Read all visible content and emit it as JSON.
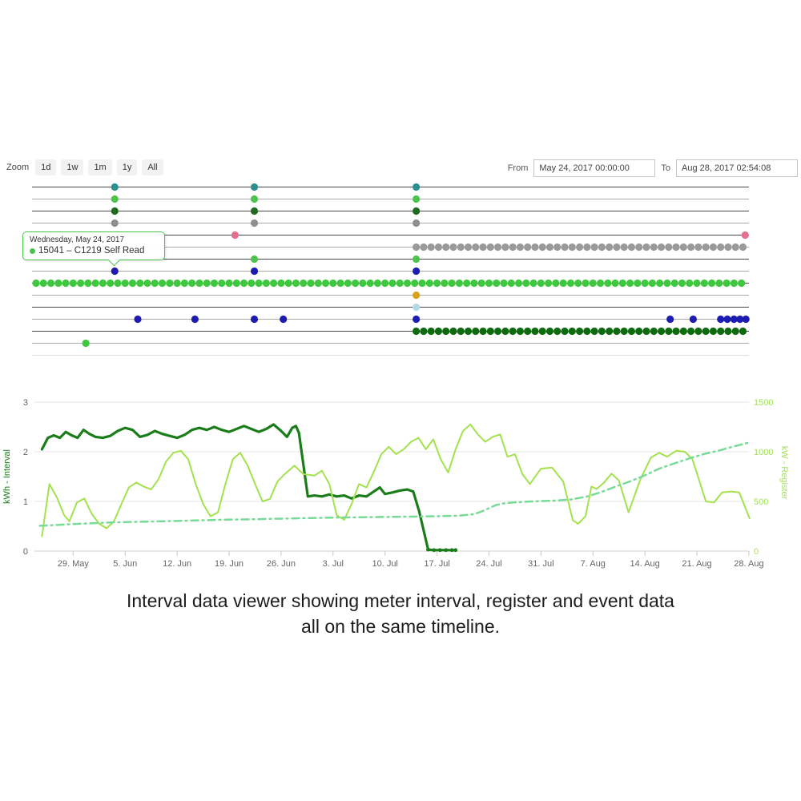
{
  "toolbar": {
    "zoom_label": "Zoom",
    "buttons": [
      "1d",
      "1w",
      "1m",
      "1y",
      "All"
    ],
    "from_label": "From",
    "from_value": "May 24, 2017 00:00:00",
    "to_label": "To",
    "to_value": "Aug 28, 2017 02:54:08"
  },
  "tooltip": {
    "date": "Wednesday, May 24, 2017",
    "text": "15041 – C1219 Self Read",
    "marker_color": "#4cc44c"
  },
  "caption": {
    "line1": "Interval data viewer showing meter interval, register and event data",
    "line2": "all on the same timeline."
  },
  "chart_data": [
    {
      "type": "scatter",
      "title": "meter event timeline",
      "x_axis": {
        "unit": "days since May 24, 2017",
        "range": [
          0,
          96.5
        ],
        "start": "May 24, 2017 00:00:00",
        "end": "Aug 28, 2017 02:54:08"
      },
      "dot_radius": 4.6,
      "tracks": [
        {
          "color": "#2b908f",
          "line": "dark",
          "events": [
            10.6,
            29.4,
            51.2
          ]
        },
        {
          "color": "#4cc44c",
          "line": "light",
          "events": [
            10.6,
            29.4,
            51.2
          ]
        },
        {
          "color": "#1d6b1d",
          "line": "dark",
          "events": [
            10.6,
            29.4,
            51.2
          ]
        },
        {
          "color": "#8f8f8f",
          "line": "light",
          "events": [
            10.6,
            29.4,
            51.2
          ]
        },
        {
          "color": "#e4708e",
          "line": "dark",
          "events": [
            26.8,
            95.5
          ]
        },
        {
          "color": "#9a9a9a",
          "line": "light",
          "events": [
            {
              "from": 51.2,
              "to": 95.5,
              "step": 1
            }
          ]
        },
        {
          "color": "#4cc44c",
          "line": "dark",
          "events": [
            29.4,
            51.2
          ]
        },
        {
          "color": "#1c1cb0",
          "line": "light",
          "events": [
            10.6,
            29.4,
            51.2
          ]
        },
        {
          "color": "#3fc83f",
          "line": "dark",
          "events": [
            {
              "from": 0,
              "to": 95.5,
              "step": 1
            }
          ]
        },
        {
          "color": "#dca318",
          "line": "light",
          "events": [
            51.2
          ]
        },
        {
          "color": "#b5d9e4",
          "line": "dark",
          "events": [
            51.2
          ]
        },
        {
          "color": "#1c1cb0",
          "line": "light",
          "events": [
            13.7,
            21.4,
            29.4,
            33.3,
            51.2,
            85.4,
            88.5,
            92.2,
            93.1,
            94.0,
            94.8,
            95.6
          ]
        },
        {
          "color": "#0e6a0e",
          "line": "dark",
          "events": [
            {
              "from": 51.2,
              "to": 95.5,
              "step": 1
            }
          ]
        },
        {
          "color": "#3fc83f",
          "line": "light",
          "events": [
            6.7
          ]
        },
        {
          "color": "#dddddd",
          "line": "xlight",
          "events": []
        }
      ]
    },
    {
      "type": "line",
      "x_unit": "days since May 24, 2017",
      "x_ticks": [
        {
          "day": 5,
          "label": "29. May"
        },
        {
          "day": 12,
          "label": "5. Jun"
        },
        {
          "day": 19,
          "label": "12. Jun"
        },
        {
          "day": 26,
          "label": "19. Jun"
        },
        {
          "day": 33,
          "label": "26. Jun"
        },
        {
          "day": 40,
          "label": "3. Jul"
        },
        {
          "day": 47,
          "label": "10. Jul"
        },
        {
          "day": 54,
          "label": "17. Jul"
        },
        {
          "day": 61,
          "label": "24. Jul"
        },
        {
          "day": 68,
          "label": "31. Jul"
        },
        {
          "day": 75,
          "label": "7. Aug"
        },
        {
          "day": 82,
          "label": "14. Aug"
        },
        {
          "day": 89,
          "label": "21. Aug"
        },
        {
          "day": 96,
          "label": "28. Aug"
        }
      ],
      "left_axis": {
        "title": "kWh - Interval",
        "ticks": [
          0,
          1,
          2,
          3
        ],
        "range": [
          0,
          3
        ],
        "title_color": "#1a7d1a",
        "tick_color": "#606060"
      },
      "right_axis": {
        "title": "kW - Register",
        "ticks": [
          0,
          500,
          1000,
          1500
        ],
        "range": [
          0,
          1500
        ],
        "title_color": "#a2df5a",
        "tick_color": "#a2df5a"
      },
      "grid": "horizontal-only",
      "legend": "none",
      "series": [
        {
          "id": "interval-dark-green",
          "axis": "left",
          "color": "#1a7d1a",
          "width": 3.2,
          "dash": "none",
          "points": [
            [
              0.8,
              2.05
            ],
            [
              1.6,
              2.28
            ],
            [
              2.4,
              2.33
            ],
            [
              3.2,
              2.28
            ],
            [
              4,
              2.4
            ],
            [
              4.8,
              2.33
            ],
            [
              5.6,
              2.28
            ],
            [
              6.4,
              2.44
            ],
            [
              7.2,
              2.36
            ],
            [
              8,
              2.3
            ],
            [
              9,
              2.28
            ],
            [
              10,
              2.32
            ],
            [
              11,
              2.42
            ],
            [
              12,
              2.48
            ],
            [
              13,
              2.44
            ],
            [
              14,
              2.3
            ],
            [
              15,
              2.34
            ],
            [
              16,
              2.42
            ],
            [
              17,
              2.36
            ],
            [
              18,
              2.32
            ],
            [
              19,
              2.28
            ],
            [
              20,
              2.34
            ],
            [
              21,
              2.44
            ],
            [
              22,
              2.48
            ],
            [
              23,
              2.44
            ],
            [
              24,
              2.5
            ],
            [
              25,
              2.44
            ],
            [
              26,
              2.4
            ],
            [
              27,
              2.46
            ],
            [
              28,
              2.52
            ],
            [
              29,
              2.46
            ],
            [
              30,
              2.4
            ],
            [
              31,
              2.46
            ],
            [
              32,
              2.55
            ],
            [
              33,
              2.42
            ],
            [
              33.8,
              2.3
            ],
            [
              34.5,
              2.48
            ],
            [
              35,
              2.52
            ],
            [
              35.4,
              2.38
            ],
            [
              36.6,
              1.1
            ],
            [
              37.5,
              1.12
            ],
            [
              38.5,
              1.1
            ],
            [
              39.5,
              1.14
            ],
            [
              40.5,
              1.1
            ],
            [
              41.5,
              1.12
            ],
            [
              42.5,
              1.06
            ],
            [
              43.5,
              1.12
            ],
            [
              44.5,
              1.1
            ],
            [
              45.5,
              1.2
            ],
            [
              46.3,
              1.28
            ],
            [
              47,
              1.15
            ],
            [
              48,
              1.18
            ],
            [
              49,
              1.22
            ],
            [
              50,
              1.24
            ],
            [
              50.8,
              1.2
            ],
            [
              51.6,
              0.8
            ],
            [
              52.8,
              0.03
            ],
            [
              53.5,
              0.02
            ],
            [
              54.5,
              0.02
            ],
            [
              55.5,
              0.02
            ],
            [
              56.5,
              0.02
            ]
          ],
          "markers": [
            [
              52.8,
              0.03
            ],
            [
              53.6,
              0.02
            ],
            [
              54.4,
              0.02
            ],
            [
              55.2,
              0.02
            ],
            [
              56,
              0.02
            ],
            [
              56.5,
              0.02
            ]
          ]
        },
        {
          "id": "interval-light-green",
          "axis": "left",
          "color": "#a3e24d",
          "width": 2,
          "dash": "none",
          "points": [
            [
              0.8,
              0.3
            ],
            [
              1.8,
              1.35
            ],
            [
              2.8,
              1.08
            ],
            [
              3.8,
              0.72
            ],
            [
              4.5,
              0.6
            ],
            [
              5.5,
              0.98
            ],
            [
              6.5,
              1.06
            ],
            [
              7.5,
              0.75
            ],
            [
              8.5,
              0.55
            ],
            [
              9.5,
              0.46
            ],
            [
              10.5,
              0.6
            ],
            [
              11.5,
              0.95
            ],
            [
              12.5,
              1.28
            ],
            [
              13.5,
              1.38
            ],
            [
              14.5,
              1.3
            ],
            [
              15.5,
              1.24
            ],
            [
              16.5,
              1.45
            ],
            [
              17.5,
              1.8
            ],
            [
              18.5,
              1.98
            ],
            [
              19.5,
              2.02
            ],
            [
              20.5,
              1.85
            ],
            [
              21.5,
              1.35
            ],
            [
              22.5,
              0.95
            ],
            [
              23.5,
              0.7
            ],
            [
              24.5,
              0.78
            ],
            [
              25.5,
              1.35
            ],
            [
              26.5,
              1.85
            ],
            [
              27.5,
              1.98
            ],
            [
              28.5,
              1.72
            ],
            [
              29.5,
              1.35
            ],
            [
              30.5,
              1.0
            ],
            [
              31.5,
              1.05
            ],
            [
              32.5,
              1.4
            ],
            [
              33.5,
              1.55
            ],
            [
              34.8,
              1.72
            ],
            [
              36,
              1.55
            ],
            [
              37.5,
              1.52
            ],
            [
              38.5,
              1.62
            ],
            [
              39.5,
              1.35
            ],
            [
              40.5,
              0.72
            ],
            [
              41.5,
              0.63
            ],
            [
              42.5,
              0.95
            ],
            [
              43.5,
              1.35
            ],
            [
              44.5,
              1.28
            ],
            [
              45.5,
              1.6
            ],
            [
              46.5,
              1.95
            ],
            [
              47.5,
              2.1
            ],
            [
              48.5,
              1.95
            ],
            [
              49.5,
              2.05
            ],
            [
              50.5,
              2.2
            ],
            [
              51.5,
              2.28
            ],
            [
              52.5,
              2.05
            ],
            [
              53.5,
              2.25
            ],
            [
              54.5,
              1.85
            ],
            [
              55.5,
              1.58
            ],
            [
              56.5,
              2.05
            ],
            [
              57.5,
              2.42
            ],
            [
              58.5,
              2.55
            ],
            [
              59.5,
              2.35
            ],
            [
              60.5,
              2.2
            ],
            [
              61.5,
              2.3
            ],
            [
              62.5,
              2.35
            ],
            [
              63.5,
              1.9
            ],
            [
              64.5,
              1.95
            ],
            [
              65.5,
              1.55
            ],
            [
              66.5,
              1.35
            ],
            [
              68,
              1.66
            ],
            [
              69.5,
              1.68
            ],
            [
              71,
              1.4
            ],
            [
              72.3,
              0.62
            ],
            [
              73,
              0.55
            ],
            [
              74,
              0.7
            ],
            [
              74.8,
              1.3
            ],
            [
              75.5,
              1.25
            ],
            [
              76.5,
              1.38
            ],
            [
              77.5,
              1.56
            ],
            [
              78.5,
              1.42
            ],
            [
              79.8,
              0.78
            ],
            [
              81.4,
              1.45
            ],
            [
              82.8,
              1.88
            ],
            [
              83.9,
              1.98
            ],
            [
              85,
              1.9
            ],
            [
              86.2,
              2.02
            ],
            [
              87.4,
              2.0
            ],
            [
              88.4,
              1.85
            ],
            [
              90.2,
              1.0
            ],
            [
              91.3,
              0.98
            ],
            [
              92.4,
              1.18
            ],
            [
              93.6,
              1.2
            ],
            [
              94.7,
              1.18
            ],
            [
              96.1,
              0.66
            ]
          ],
          "markers": []
        },
        {
          "id": "register-dashed",
          "axis": "right",
          "color": "#77db98",
          "width": 2.5,
          "dash": "9 5 2 5",
          "points": [
            [
              0.5,
              255
            ],
            [
              5,
              272
            ],
            [
              10,
              288
            ],
            [
              15,
              297
            ],
            [
              20,
              306
            ],
            [
              25,
              315
            ],
            [
              30,
              322
            ],
            [
              35,
              330
            ],
            [
              40,
              337
            ],
            [
              45,
              342
            ],
            [
              50,
              347
            ],
            [
              54,
              351
            ],
            [
              57,
              357
            ],
            [
              59,
              372
            ],
            [
              60,
              398
            ],
            [
              61,
              432
            ],
            [
              62,
              465
            ],
            [
              63,
              480
            ],
            [
              64,
              488
            ],
            [
              66,
              497
            ],
            [
              68,
              503
            ],
            [
              70,
              509
            ],
            [
              72,
              519
            ],
            [
              74,
              546
            ],
            [
              76,
              590
            ],
            [
              78,
              648
            ],
            [
              80,
              702
            ],
            [
              82,
              763
            ],
            [
              84,
              832
            ],
            [
              86,
              884
            ],
            [
              88,
              934
            ],
            [
              90,
              978
            ],
            [
              92,
              1013
            ],
            [
              94,
              1054
            ],
            [
              96,
              1093
            ]
          ],
          "markers": []
        }
      ]
    }
  ]
}
